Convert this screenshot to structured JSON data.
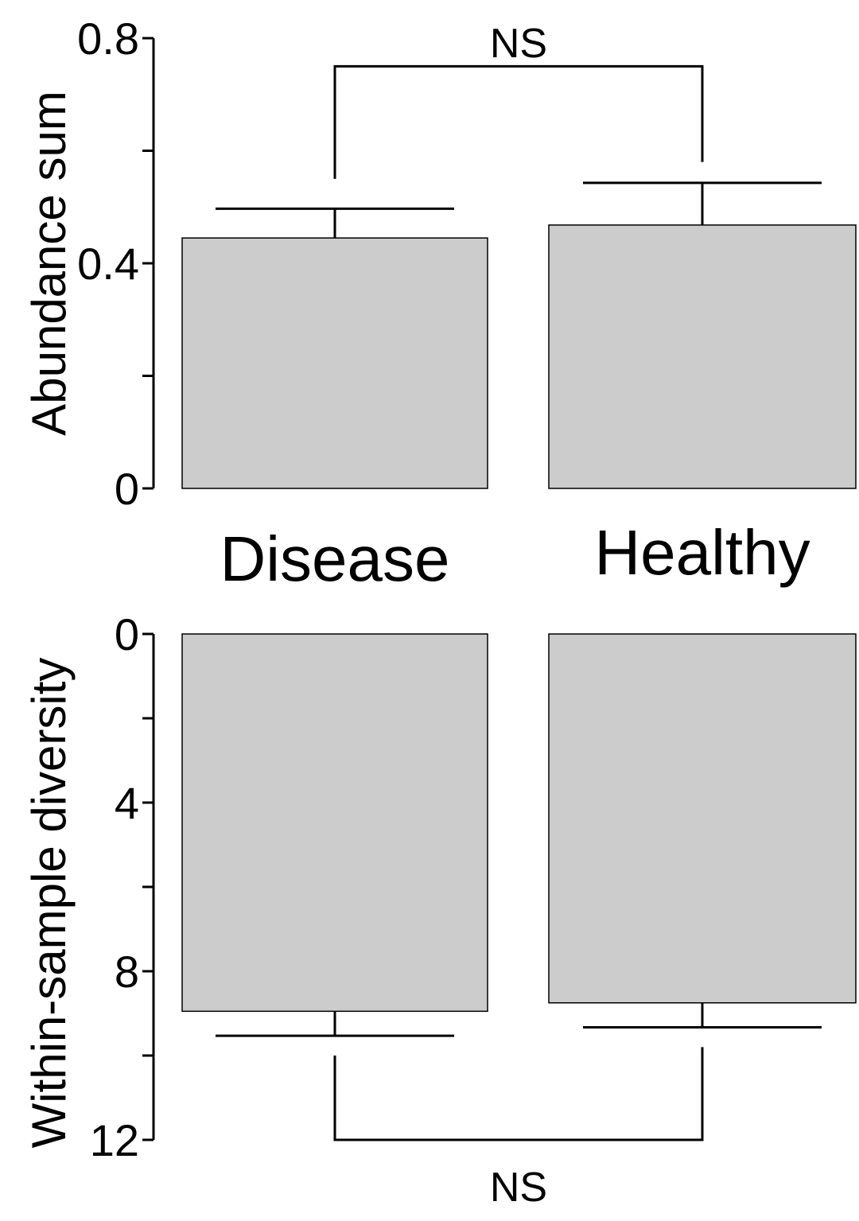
{
  "chart_data": [
    {
      "type": "bar",
      "panel": "top",
      "ylabel": "Abundance sum",
      "ylim": [
        0,
        0.8
      ],
      "yticks": [
        0,
        0.2,
        0.4,
        0.6,
        0.8
      ],
      "ytick_labels": [
        "0",
        "",
        "0.4",
        "",
        "0.8"
      ],
      "categories": [
        "Disease",
        "Healthy"
      ],
      "values": [
        0.445,
        0.468
      ],
      "error_upper": [
        0.497,
        0.543
      ],
      "significance": "NS",
      "bracket_level": 0.75,
      "bracket_end_lower": [
        0.55,
        0.58
      ],
      "orientation": "up"
    },
    {
      "type": "bar",
      "panel": "bottom",
      "ylabel": "Within-sample diversity",
      "ylim": [
        0,
        12
      ],
      "yticks": [
        0,
        2,
        4,
        6,
        8,
        10,
        12
      ],
      "ytick_labels": [
        "0",
        "",
        "4",
        "",
        "8",
        "",
        "12"
      ],
      "categories": [
        "Disease",
        "Healthy"
      ],
      "values": [
        8.95,
        8.75
      ],
      "error_upper": [
        9.53,
        9.33
      ],
      "significance": "NS",
      "bracket_level": 12,
      "bracket_end_lower": [
        10.0,
        9.8
      ],
      "orientation": "down"
    }
  ],
  "colors": {
    "bar_fill": "#cccccc",
    "ink": "#000000"
  }
}
